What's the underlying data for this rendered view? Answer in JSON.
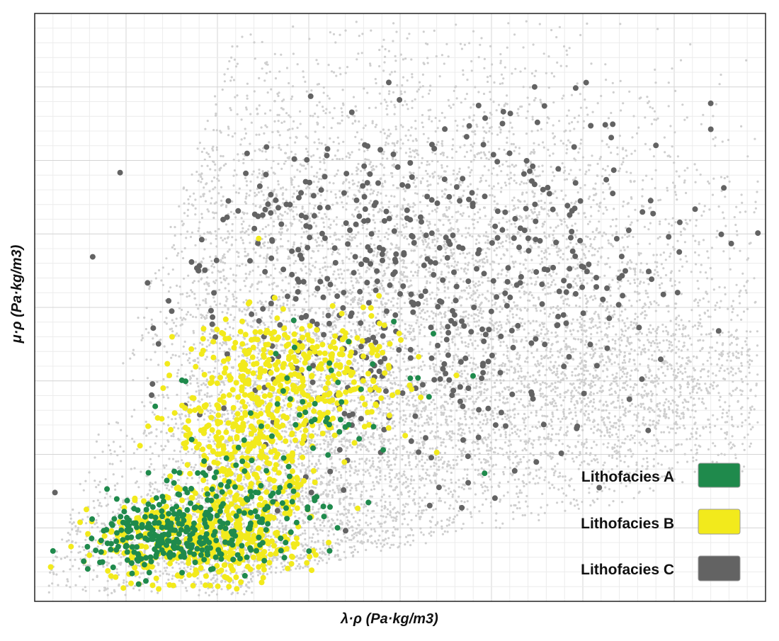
{
  "chart_data": {
    "type": "scatter",
    "title": "",
    "xlabel": "λ·ρ (Pa·kg/m3)",
    "ylabel": "μ·ρ (Pa·kg/m3)",
    "tick_labels_shown": false,
    "xlim": [
      0,
      100
    ],
    "ylim": [
      0,
      100
    ],
    "grid": true,
    "legend_position": "bottom-right",
    "background_points": {
      "name": "",
      "color": "#cfcfcf",
      "description": "dense background cloud"
    },
    "series": [
      {
        "name": "Lithofacies A",
        "color": "#1f8a4c",
        "count_approx": 400,
        "cluster": "low λρ, low μρ (lower-left)"
      },
      {
        "name": "Lithofacies B",
        "color": "#f2ea1c",
        "count_approx": 1100,
        "cluster": "low to mid λρ, low to mid μρ"
      },
      {
        "name": "Lithofacies C",
        "color": "#636363",
        "count_approx": 550,
        "cluster": "mid to high λρ, mid to high μρ"
      }
    ]
  }
}
